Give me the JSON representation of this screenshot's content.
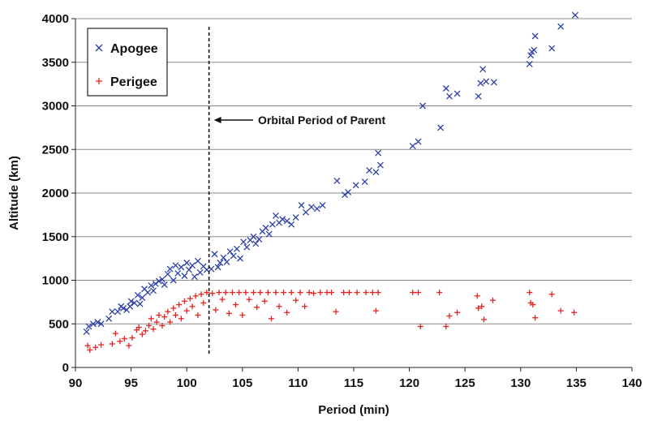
{
  "chart_data": {
    "type": "scatter",
    "title": "",
    "xlabel": "Period  (min)",
    "ylabel": "Altitude  (km)",
    "xlim": [
      90,
      140
    ],
    "ylim": [
      0,
      4000
    ],
    "x_ticks": [
      "90",
      "95",
      "100",
      "105",
      "110",
      "115",
      "120",
      "125",
      "130",
      "135",
      "140"
    ],
    "y_ticks": [
      "0",
      "500",
      "1000",
      "1500",
      "2000",
      "2500",
      "3000",
      "3500",
      "4000"
    ],
    "grid": "horizontal",
    "legend_position": "top-left",
    "colors": {
      "apogee": "#2b3fa8",
      "perigee": "#e8221f",
      "grid": "#8a8a8a"
    },
    "reference_line": {
      "x": 102,
      "style": "dashed",
      "label": "Orbital Period of Parent"
    },
    "series": [
      {
        "name": "Apogee",
        "marker": "x",
        "points": [
          [
            91.0,
            410
          ],
          [
            91.2,
            470
          ],
          [
            91.6,
            500
          ],
          [
            92.0,
            520
          ],
          [
            92.3,
            500
          ],
          [
            93.0,
            560
          ],
          [
            93.3,
            640
          ],
          [
            93.8,
            640
          ],
          [
            94.1,
            700
          ],
          [
            94.3,
            680
          ],
          [
            94.6,
            660
          ],
          [
            94.9,
            700
          ],
          [
            95.0,
            760
          ],
          [
            95.3,
            740
          ],
          [
            95.6,
            830
          ],
          [
            95.8,
            730
          ],
          [
            96.0,
            800
          ],
          [
            96.2,
            900
          ],
          [
            96.5,
            860
          ],
          [
            96.8,
            940
          ],
          [
            97.0,
            880
          ],
          [
            97.2,
            960
          ],
          [
            97.5,
            990
          ],
          [
            97.8,
            1010
          ],
          [
            98.0,
            950
          ],
          [
            98.3,
            1070
          ],
          [
            98.5,
            1130
          ],
          [
            98.8,
            1000
          ],
          [
            99.0,
            1170
          ],
          [
            99.2,
            1080
          ],
          [
            99.5,
            1150
          ],
          [
            99.8,
            1050
          ],
          [
            100.0,
            1200
          ],
          [
            100.2,
            1120
          ],
          [
            100.5,
            1170
          ],
          [
            100.7,
            1040
          ],
          [
            101.0,
            1220
          ],
          [
            101.2,
            1090
          ],
          [
            101.5,
            1160
          ],
          [
            101.8,
            1120
          ],
          [
            102.2,
            1130
          ],
          [
            102.5,
            1300
          ],
          [
            102.8,
            1150
          ],
          [
            103.0,
            1200
          ],
          [
            103.3,
            1260
          ],
          [
            103.6,
            1210
          ],
          [
            103.9,
            1330
          ],
          [
            104.2,
            1280
          ],
          [
            104.5,
            1360
          ],
          [
            104.8,
            1250
          ],
          [
            105.1,
            1440
          ],
          [
            105.4,
            1380
          ],
          [
            105.7,
            1460
          ],
          [
            106.0,
            1500
          ],
          [
            106.2,
            1420
          ],
          [
            106.5,
            1470
          ],
          [
            106.8,
            1560
          ],
          [
            107.1,
            1600
          ],
          [
            107.4,
            1530
          ],
          [
            107.7,
            1640
          ],
          [
            108.0,
            1740
          ],
          [
            108.3,
            1660
          ],
          [
            108.6,
            1700
          ],
          [
            109.0,
            1680
          ],
          [
            109.4,
            1640
          ],
          [
            109.8,
            1720
          ],
          [
            110.3,
            1860
          ],
          [
            110.7,
            1780
          ],
          [
            111.2,
            1840
          ],
          [
            111.7,
            1820
          ],
          [
            112.2,
            1860
          ],
          [
            113.5,
            2140
          ],
          [
            114.2,
            1980
          ],
          [
            114.5,
            2010
          ],
          [
            115.2,
            2090
          ],
          [
            116.0,
            2130
          ],
          [
            116.4,
            2260
          ],
          [
            117.0,
            2240
          ],
          [
            117.2,
            2460
          ],
          [
            117.4,
            2320
          ],
          [
            120.3,
            2540
          ],
          [
            120.8,
            2590
          ],
          [
            121.2,
            3000
          ],
          [
            122.8,
            2750
          ],
          [
            123.3,
            3200
          ],
          [
            123.6,
            3110
          ],
          [
            124.3,
            3140
          ],
          [
            126.2,
            3110
          ],
          [
            126.4,
            3260
          ],
          [
            126.6,
            3420
          ],
          [
            126.9,
            3280
          ],
          [
            127.6,
            3270
          ],
          [
            130.8,
            3480
          ],
          [
            130.9,
            3580
          ],
          [
            131.0,
            3620
          ],
          [
            131.2,
            3640
          ],
          [
            131.3,
            3800
          ],
          [
            132.8,
            3660
          ],
          [
            133.6,
            3910
          ],
          [
            134.9,
            4040
          ]
        ]
      },
      {
        "name": "Perigee",
        "marker": "+",
        "points": [
          [
            91.1,
            250
          ],
          [
            91.3,
            200
          ],
          [
            91.8,
            230
          ],
          [
            92.3,
            260
          ],
          [
            93.3,
            270
          ],
          [
            93.6,
            390
          ],
          [
            94.0,
            300
          ],
          [
            94.4,
            330
          ],
          [
            94.8,
            250
          ],
          [
            95.1,
            340
          ],
          [
            95.5,
            430
          ],
          [
            95.7,
            460
          ],
          [
            96.0,
            380
          ],
          [
            96.3,
            420
          ],
          [
            96.6,
            480
          ],
          [
            96.8,
            560
          ],
          [
            97.0,
            440
          ],
          [
            97.3,
            520
          ],
          [
            97.5,
            600
          ],
          [
            97.8,
            480
          ],
          [
            98.0,
            580
          ],
          [
            98.3,
            640
          ],
          [
            98.5,
            520
          ],
          [
            98.8,
            680
          ],
          [
            99.0,
            600
          ],
          [
            99.3,
            720
          ],
          [
            99.5,
            560
          ],
          [
            99.8,
            760
          ],
          [
            100.0,
            650
          ],
          [
            100.3,
            790
          ],
          [
            100.5,
            700
          ],
          [
            100.8,
            820
          ],
          [
            101.0,
            600
          ],
          [
            101.3,
            840
          ],
          [
            101.5,
            740
          ],
          [
            101.8,
            860
          ],
          [
            102.3,
            850
          ],
          [
            102.6,
            660
          ],
          [
            102.9,
            860
          ],
          [
            103.2,
            780
          ],
          [
            103.5,
            860
          ],
          [
            103.8,
            620
          ],
          [
            104.1,
            860
          ],
          [
            104.4,
            720
          ],
          [
            104.7,
            860
          ],
          [
            105.0,
            600
          ],
          [
            105.3,
            860
          ],
          [
            105.6,
            780
          ],
          [
            106.0,
            860
          ],
          [
            106.3,
            690
          ],
          [
            106.6,
            860
          ],
          [
            107.0,
            760
          ],
          [
            107.3,
            860
          ],
          [
            107.6,
            560
          ],
          [
            108.0,
            860
          ],
          [
            108.3,
            700
          ],
          [
            108.7,
            860
          ],
          [
            109.0,
            630
          ],
          [
            109.4,
            860
          ],
          [
            109.8,
            770
          ],
          [
            110.2,
            860
          ],
          [
            110.6,
            700
          ],
          [
            111.0,
            860
          ],
          [
            111.4,
            850
          ],
          [
            112.0,
            860
          ],
          [
            112.6,
            860
          ],
          [
            113.0,
            860
          ],
          [
            113.4,
            640
          ],
          [
            114.1,
            860
          ],
          [
            114.6,
            860
          ],
          [
            115.3,
            860
          ],
          [
            116.1,
            860
          ],
          [
            116.7,
            860
          ],
          [
            117.2,
            860
          ],
          [
            117.0,
            650
          ],
          [
            120.3,
            860
          ],
          [
            120.8,
            860
          ],
          [
            121.0,
            470
          ],
          [
            122.7,
            860
          ],
          [
            123.3,
            470
          ],
          [
            123.6,
            590
          ],
          [
            124.3,
            630
          ],
          [
            126.1,
            820
          ],
          [
            126.2,
            680
          ],
          [
            126.5,
            700
          ],
          [
            126.7,
            550
          ],
          [
            127.5,
            770
          ],
          [
            130.8,
            860
          ],
          [
            130.9,
            740
          ],
          [
            131.1,
            720
          ],
          [
            131.3,
            570
          ],
          [
            132.8,
            840
          ],
          [
            133.6,
            650
          ],
          [
            134.8,
            630
          ]
        ]
      }
    ]
  }
}
